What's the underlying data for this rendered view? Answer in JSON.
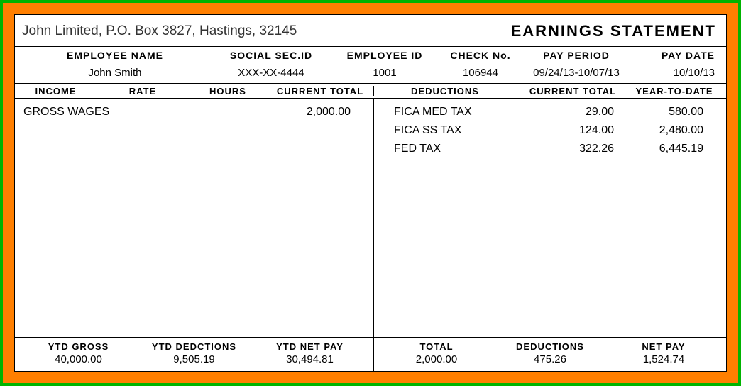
{
  "layout": {
    "outer_border_color": "#00b400",
    "frame_background": "#ff7f00",
    "paper_background": "#ffffff",
    "text_color": "#000000",
    "font_family": "Arial"
  },
  "header": {
    "company_address": "John Limited, P.O. Box 3827, Hastings, 32145",
    "title": "EARNINGS  STATEMENT"
  },
  "employee_labels": {
    "name": "EMPLOYEE NAME",
    "ssn": "SOCIAL SEC.ID",
    "emp_id": "EMPLOYEE ID",
    "check_no": "CHECK No.",
    "pay_period": "PAY PERIOD",
    "pay_date": "PAY DATE"
  },
  "employee_values": {
    "name": "John Smith",
    "ssn": "XXX-XX-4444",
    "emp_id": "1001",
    "check_no": "106944",
    "pay_period": "09/24/13-10/07/13",
    "pay_date": "10/10/13"
  },
  "section_headers": {
    "income": "INCOME",
    "rate": "RATE",
    "hours": "HOURS",
    "current_total_left": "CURRENT TOTAL",
    "deductions": "DEDUCTIONS",
    "current_total_right": "CURRENT TOTAL",
    "ytd": "YEAR-TO-DATE"
  },
  "income": [
    {
      "label": "GROSS WAGES",
      "current_total": "2,000.00"
    }
  ],
  "deductions": [
    {
      "label": "FICA MED TAX",
      "current": "29.00",
      "ytd": "580.00"
    },
    {
      "label": "FICA SS TAX",
      "current": "124.00",
      "ytd": "2,480.00"
    },
    {
      "label": "FED TAX",
      "current": "322.26",
      "ytd": "6,445.19"
    }
  ],
  "footer_labels": {
    "ytd_gross": "YTD GROSS",
    "ytd_deductions": "YTD DEDCTIONS",
    "ytd_net_pay": "YTD NET PAY",
    "total": "TOTAL",
    "deductions": "DEDUCTIONS",
    "net_pay": "NET PAY"
  },
  "footer_values": {
    "ytd_gross": "40,000.00",
    "ytd_deductions": "9,505.19",
    "ytd_net_pay": "30,494.81",
    "total": "2,000.00",
    "deductions": "475.26",
    "net_pay": "1,524.74"
  }
}
